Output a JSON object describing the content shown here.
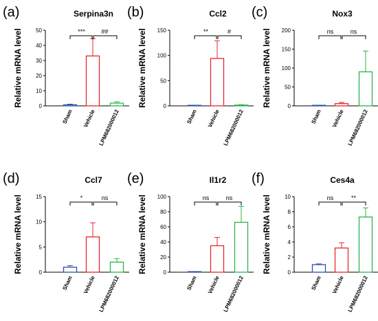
{
  "figure": {
    "panels": [
      {
        "letter": "(a)",
        "title": "Serpina3n",
        "ylabel": "Relative mRNA level",
        "ylim": [
          0,
          50
        ],
        "yticks": [
          0,
          10,
          20,
          30,
          40,
          50
        ],
        "categories": [
          "Sham",
          "Vehicle",
          "LPM682000012"
        ],
        "values": [
          0.7,
          33,
          1.8
        ],
        "errors": [
          0.4,
          11.5,
          0.9
        ],
        "colors": [
          "#2b4fa8",
          "#e8262a",
          "#2db34a"
        ],
        "sig_left": "***",
        "sig_right": "##"
      },
      {
        "letter": "(b)",
        "title": "Ccl2",
        "ylabel": "Relative mRNA level",
        "ylim": [
          0,
          150
        ],
        "yticks": [
          0,
          50,
          100,
          150
        ],
        "categories": [
          "Sham",
          "Vehicle",
          "LPM682000012"
        ],
        "values": [
          0.5,
          94,
          1.5
        ],
        "errors": [
          0.3,
          35,
          0.8
        ],
        "colors": [
          "#2b4fa8",
          "#e8262a",
          "#2db34a"
        ],
        "sig_left": "**",
        "sig_right": "#"
      },
      {
        "letter": "(c)",
        "title": "Nox3",
        "ylabel": "Relative mRNA level",
        "ylim": [
          0,
          200
        ],
        "yticks": [
          0,
          50,
          100,
          150,
          200
        ],
        "categories": [
          "Sham",
          "Vehicle",
          "LPM682000012"
        ],
        "values": [
          0.5,
          6,
          90
        ],
        "errors": [
          0.3,
          3,
          55
        ],
        "colors": [
          "#2b4fa8",
          "#e8262a",
          "#2db34a"
        ],
        "sig_left": "ns",
        "sig_right": "ns"
      },
      {
        "letter": "(d)",
        "title": "Ccl7",
        "ylabel": "Relative mRNA level",
        "ylim": [
          0,
          15
        ],
        "yticks": [
          0,
          5,
          10,
          15
        ],
        "categories": [
          "Sham",
          "Vehicle",
          "LPM682000012"
        ],
        "values": [
          1.0,
          7.0,
          2.0
        ],
        "errors": [
          0.3,
          2.8,
          0.7
        ],
        "colors": [
          "#2b4fa8",
          "#e8262a",
          "#2db34a"
        ],
        "sig_left": "*",
        "sig_right": "ns"
      },
      {
        "letter": "(e)",
        "title": "Il1r2",
        "ylabel": "Relative mRNA level",
        "ylim": [
          0,
          100
        ],
        "yticks": [
          0,
          20,
          40,
          60,
          80,
          100
        ],
        "categories": [
          "Sham",
          "Vehicle",
          "LPM682000012"
        ],
        "values": [
          0.5,
          35,
          66
        ],
        "errors": [
          0.3,
          11,
          21
        ],
        "colors": [
          "#2b4fa8",
          "#e8262a",
          "#2db34a"
        ],
        "sig_left": "ns",
        "sig_right": "ns"
      },
      {
        "letter": "(f)",
        "title": "Ces4a",
        "ylabel": "Relative mRNA level",
        "ylim": [
          0,
          10
        ],
        "yticks": [
          0,
          2,
          4,
          6,
          8,
          10
        ],
        "categories": [
          "Sham",
          "Vehicle",
          "LPM682000012"
        ],
        "values": [
          1.0,
          3.2,
          7.3
        ],
        "errors": [
          0.1,
          0.7,
          1.2
        ],
        "colors": [
          "#2b4fa8",
          "#e8262a",
          "#2db34a"
        ],
        "sig_left": "ns",
        "sig_right": "**"
      }
    ]
  },
  "chart_data": [
    {
      "type": "bar",
      "title": "Serpina3n",
      "ylabel": "Relative mRNA level",
      "categories": [
        "Sham",
        "Vehicle",
        "LPM682000012"
      ],
      "values": [
        0.7,
        33,
        1.8
      ],
      "errors": [
        0.4,
        11.5,
        0.9
      ],
      "ylim": [
        0,
        50
      ]
    },
    {
      "type": "bar",
      "title": "Ccl2",
      "ylabel": "Relative mRNA level",
      "categories": [
        "Sham",
        "Vehicle",
        "LPM682000012"
      ],
      "values": [
        0.5,
        94,
        1.5
      ],
      "errors": [
        0.3,
        35,
        0.8
      ],
      "ylim": [
        0,
        150
      ]
    },
    {
      "type": "bar",
      "title": "Nox3",
      "ylabel": "Relative mRNA level",
      "categories": [
        "Sham",
        "Vehicle",
        "LPM682000012"
      ],
      "values": [
        0.5,
        6,
        90
      ],
      "errors": [
        0.3,
        3,
        55
      ],
      "ylim": [
        0,
        200
      ]
    },
    {
      "type": "bar",
      "title": "Ccl7",
      "ylabel": "Relative mRNA level",
      "categories": [
        "Sham",
        "Vehicle",
        "LPM682000012"
      ],
      "values": [
        1.0,
        7.0,
        2.0
      ],
      "errors": [
        0.3,
        2.8,
        0.7
      ],
      "ylim": [
        0,
        15
      ]
    },
    {
      "type": "bar",
      "title": "Il1r2",
      "ylabel": "Relative mRNA level",
      "categories": [
        "Sham",
        "Vehicle",
        "LPM682000012"
      ],
      "values": [
        0.5,
        35,
        66
      ],
      "errors": [
        0.3,
        11,
        21
      ],
      "ylim": [
        0,
        100
      ]
    },
    {
      "type": "bar",
      "title": "Ces4a",
      "ylabel": "Relative mRNA level",
      "categories": [
        "Sham",
        "Vehicle",
        "LPM682000012"
      ],
      "values": [
        1.0,
        3.2,
        7.3
      ],
      "errors": [
        0.1,
        0.7,
        1.2
      ],
      "ylim": [
        0,
        10
      ]
    }
  ]
}
